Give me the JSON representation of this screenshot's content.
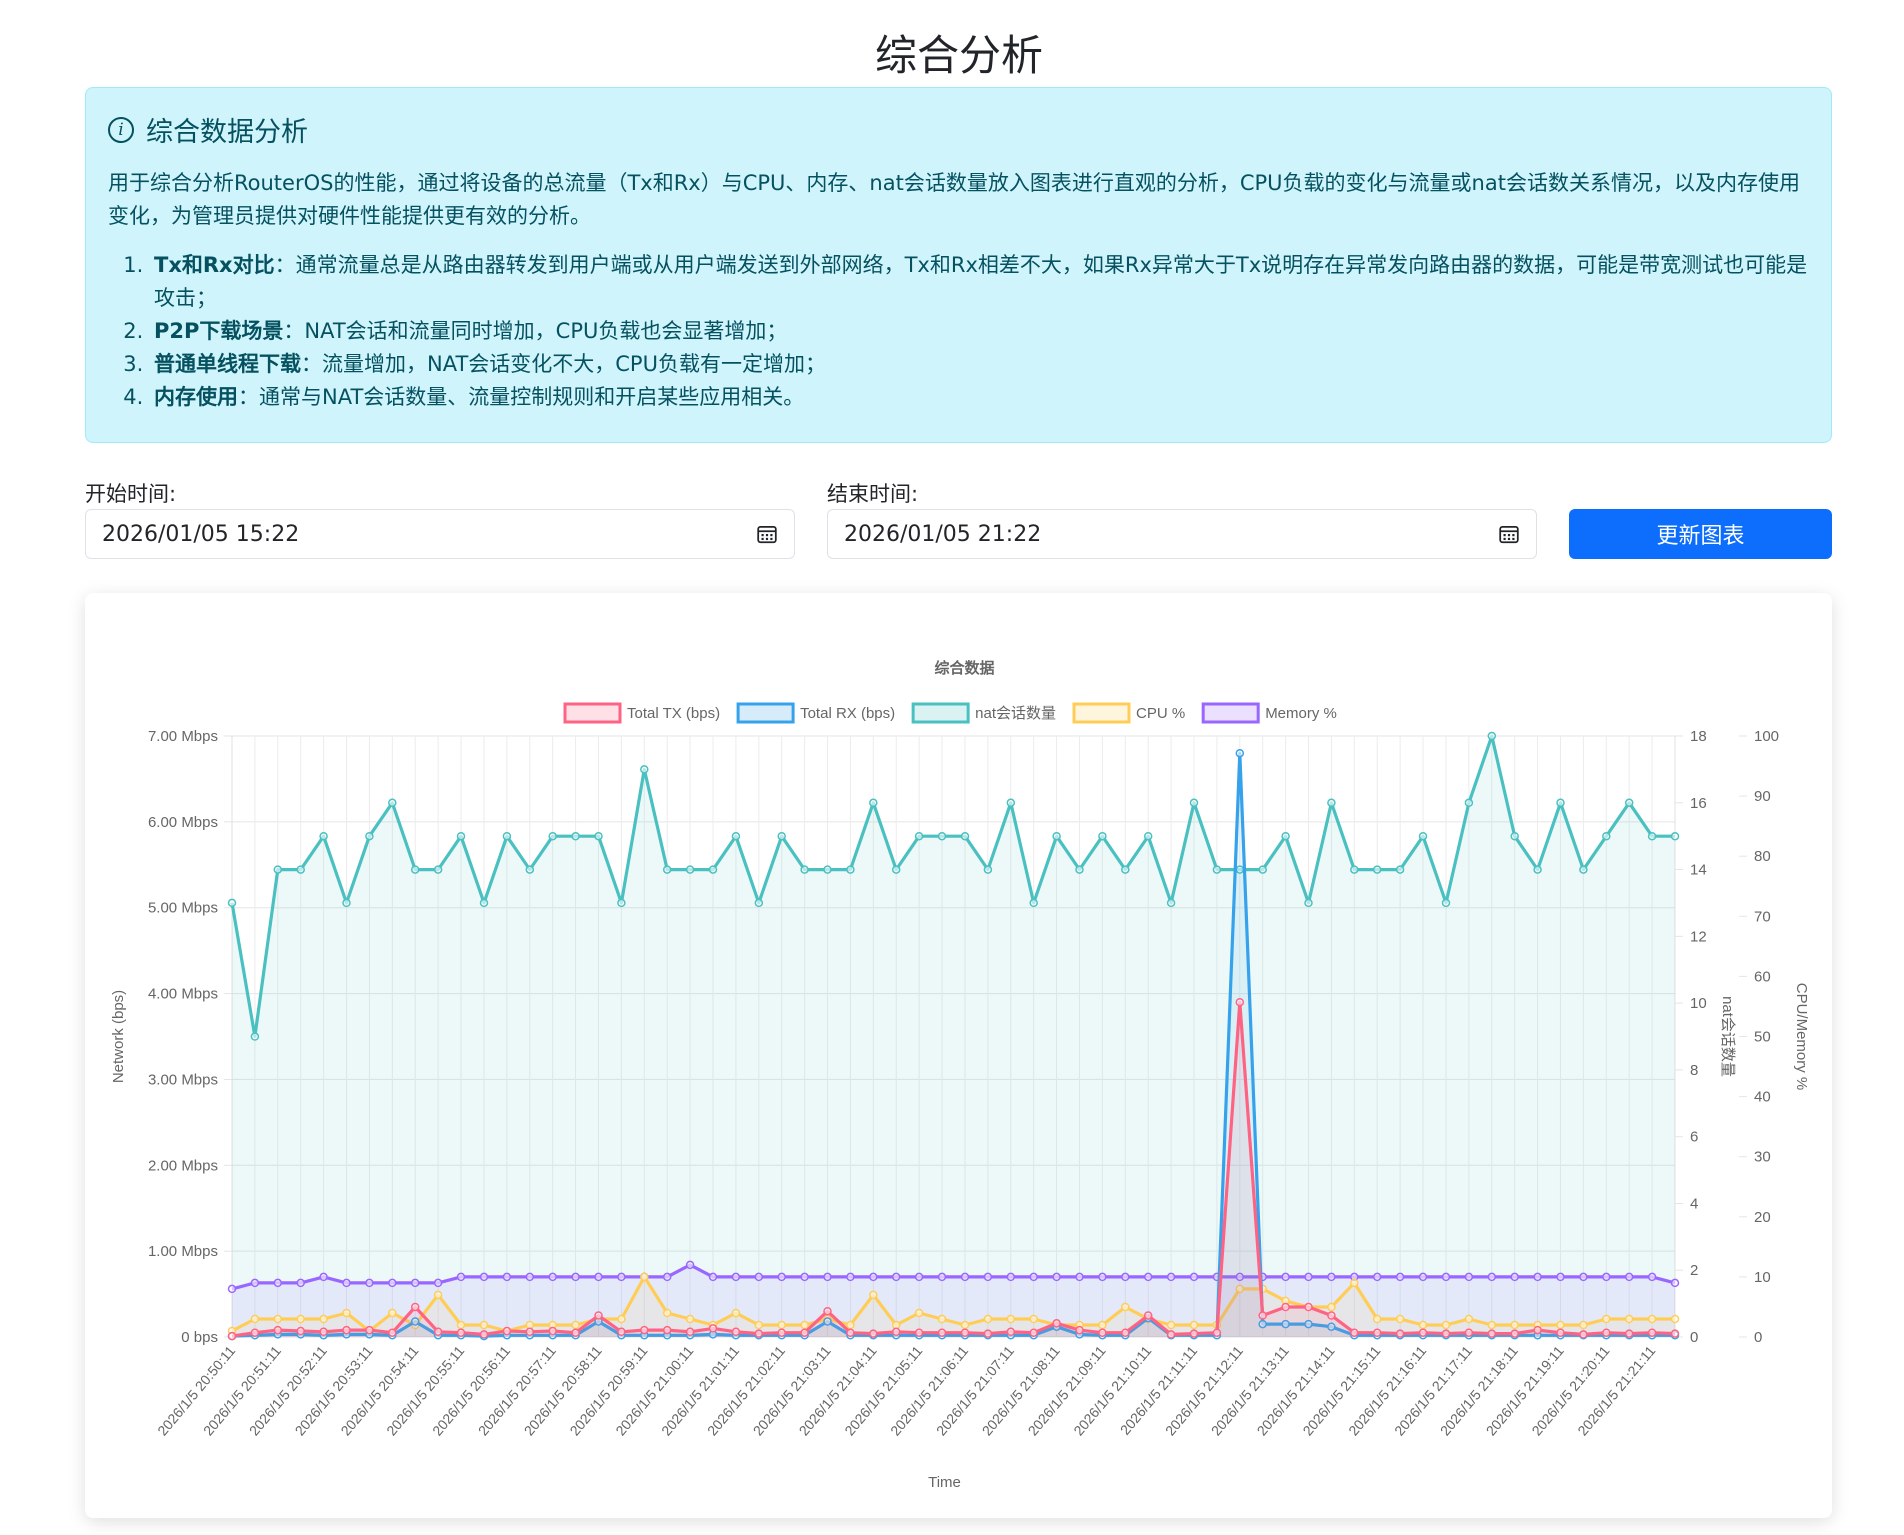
{
  "page": {
    "title": "综合分析"
  },
  "alert": {
    "heading": "综合数据分析",
    "description": "用于综合分析RouterOS的性能，通过将设备的总流量（Tx和Rx）与CPU、内存、nat会话数量放入图表进行直观的分析，CPU负载的变化与流量或nat会话数关系情况，以及内存使用变化，为管理员提供对硬件性能提供更有效的分析。",
    "items": [
      {
        "term": "Tx和Rx对比",
        "text": "：通常流量总是从路由器转发到用户端或从用户端发送到外部网络，Tx和Rx相差不大，如果Rx异常大于Tx说明存在异常发向路由器的数据，可能是带宽测试也可能是攻击；"
      },
      {
        "term": "P2P下载场景",
        "text": "：NAT会话和流量同时增加，CPU负载也会显著增加；"
      },
      {
        "term": "普通单线程下载",
        "text": "：流量增加，NAT会话变化不大，CPU负载有一定增加；"
      },
      {
        "term": "内存使用",
        "text": "：通常与NAT会话数量、流量控制规则和开启某些应用相关。"
      }
    ]
  },
  "form": {
    "start_label": "开始时间:",
    "start_value": "2026/01/05 15:22",
    "end_label": "结束时间:",
    "end_value": "2026/01/05 21:22",
    "button_label": "更新图表"
  },
  "icons": {
    "alert": "info-circle-icon",
    "date_picker": "calendar-icon"
  },
  "chart_data": {
    "type": "line",
    "title": "综合数据",
    "xlabel": "Time",
    "y_left_label": "Network (bps)",
    "y_right1_label": "nat会话数量",
    "y_right2_label": "CPU/Memory %",
    "y_left_ticks": [
      "0 bps",
      "1.00 Mbps",
      "2.00 Mbps",
      "3.00 Mbps",
      "4.00 Mbps",
      "5.00 Mbps",
      "6.00 Mbps",
      "7.00 Mbps"
    ],
    "y_right1_ticks": [
      "0",
      "2",
      "4",
      "6",
      "8",
      "10",
      "12",
      "14",
      "16",
      "18"
    ],
    "y_right2_ticks": [
      "0",
      "10",
      "20",
      "30",
      "40",
      "50",
      "60",
      "70",
      "80",
      "90",
      "100"
    ],
    "y_left_range": [
      0,
      7
    ],
    "y_left_unit": "Mbps",
    "y_right1_range": [
      0,
      18
    ],
    "y_right2_range": [
      0,
      100
    ],
    "legend_position": "top",
    "grid": true,
    "x_tick_labels": [
      "2026/1/5 20:50:11",
      "2026/1/5 20:51:11",
      "2026/1/5 20:52:11",
      "2026/1/5 20:53:11",
      "2026/1/5 20:54:11",
      "2026/1/5 20:55:11",
      "2026/1/5 20:56:11",
      "2026/1/5 20:57:11",
      "2026/1/5 20:58:11",
      "2026/1/5 20:59:11",
      "2026/1/5 21:00:11",
      "2026/1/5 21:01:11",
      "2026/1/5 21:02:11",
      "2026/1/5 21:03:11",
      "2026/1/5 21:04:11",
      "2026/1/5 21:05:11",
      "2026/1/5 21:06:11",
      "2026/1/5 21:07:11",
      "2026/1/5 21:08:11",
      "2026/1/5 21:09:11",
      "2026/1/5 21:10:11",
      "2026/1/5 21:11:11",
      "2026/1/5 21:12:11",
      "2026/1/5 21:13:11",
      "2026/1/5 21:14:11",
      "2026/1/5 21:15:11",
      "2026/1/5 21:16:11",
      "2026/1/5 21:17:11",
      "2026/1/5 21:18:11",
      "2026/1/5 21:19:11",
      "2026/1/5 21:20:11",
      "2026/1/5 21:21:11"
    ],
    "series": [
      {
        "name": "Total TX (bps)",
        "axis": "left",
        "color": "#ff6384",
        "values": [
          0.01,
          0.05,
          0.08,
          0.07,
          0.06,
          0.08,
          0.08,
          0.05,
          0.35,
          0.06,
          0.05,
          0.03,
          0.07,
          0.06,
          0.07,
          0.05,
          0.25,
          0.06,
          0.08,
          0.08,
          0.06,
          0.1,
          0.06,
          0.04,
          0.05,
          0.05,
          0.3,
          0.05,
          0.04,
          0.06,
          0.05,
          0.05,
          0.05,
          0.04,
          0.06,
          0.05,
          0.16,
          0.08,
          0.05,
          0.05,
          0.25,
          0.03,
          0.04,
          0.05,
          3.9,
          0.25,
          0.35,
          0.35,
          0.25,
          0.05,
          0.05,
          0.04,
          0.05,
          0.04,
          0.05,
          0.04,
          0.04,
          0.08,
          0.05,
          0.03,
          0.05,
          0.04,
          0.05,
          0.04
        ]
      },
      {
        "name": "Total RX (bps)",
        "axis": "left",
        "color": "#36a2eb",
        "values": [
          0.01,
          0.02,
          0.03,
          0.03,
          0.02,
          0.03,
          0.03,
          0.02,
          0.18,
          0.02,
          0.02,
          0.01,
          0.02,
          0.02,
          0.02,
          0.02,
          0.18,
          0.02,
          0.02,
          0.02,
          0.02,
          0.03,
          0.02,
          0.02,
          0.02,
          0.02,
          0.18,
          0.02,
          0.02,
          0.02,
          0.02,
          0.02,
          0.02,
          0.02,
          0.02,
          0.02,
          0.12,
          0.03,
          0.02,
          0.02,
          0.22,
          0.02,
          0.02,
          0.02,
          6.8,
          0.15,
          0.15,
          0.15,
          0.12,
          0.02,
          0.02,
          0.02,
          0.02,
          0.02,
          0.02,
          0.02,
          0.02,
          0.02,
          0.02,
          0.02,
          0.02,
          0.02,
          0.02,
          0.02
        ]
      },
      {
        "name": "nat会话数量",
        "axis": "right1",
        "color": "#4bc0c0",
        "values": [
          13,
          9,
          14,
          14,
          15,
          13,
          15,
          16,
          14,
          14,
          15,
          13,
          15,
          14,
          15,
          15,
          15,
          13,
          17,
          14,
          14,
          14,
          15,
          13,
          15,
          14,
          14,
          14,
          16,
          14,
          15,
          15,
          15,
          14,
          16,
          13,
          15,
          14,
          15,
          14,
          15,
          13,
          16,
          14,
          14,
          14,
          15,
          13,
          16,
          14,
          14,
          14,
          15,
          13,
          16,
          18,
          15,
          14,
          16,
          14,
          15,
          16,
          15,
          15
        ]
      },
      {
        "name": "CPU %",
        "axis": "right2",
        "color": "#ffcd56",
        "values": [
          1,
          3,
          3,
          3,
          3,
          4,
          1,
          4,
          2,
          7,
          2,
          2,
          1,
          2,
          2,
          2,
          3,
          3,
          10,
          4,
          3,
          2,
          4,
          2,
          2,
          2,
          3,
          2,
          7,
          2,
          4,
          3,
          2,
          3,
          3,
          3,
          2,
          2,
          2,
          5,
          3,
          2,
          2,
          2,
          8,
          8,
          6,
          5,
          5,
          9,
          3,
          3,
          2,
          2,
          3,
          2,
          2,
          2,
          2,
          2,
          3,
          3,
          3,
          3
        ]
      },
      {
        "name": "Memory %",
        "axis": "right2",
        "color": "#9966ff",
        "values": [
          8,
          9,
          9,
          9,
          10,
          9,
          9,
          9,
          9,
          9,
          10,
          10,
          10,
          10,
          10,
          10,
          10,
          10,
          10,
          10,
          12,
          10,
          10,
          10,
          10,
          10,
          10,
          10,
          10,
          10,
          10,
          10,
          10,
          10,
          10,
          10,
          10,
          10,
          10,
          10,
          10,
          10,
          10,
          10,
          10,
          10,
          10,
          10,
          10,
          10,
          10,
          10,
          10,
          10,
          10,
          10,
          10,
          10,
          10,
          10,
          10,
          10,
          10,
          9
        ]
      }
    ]
  }
}
